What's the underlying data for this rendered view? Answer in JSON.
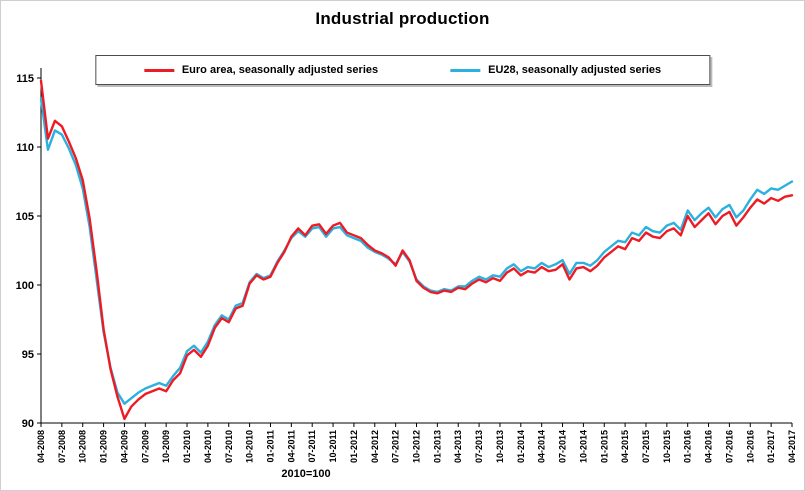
{
  "chart_data": {
    "type": "line",
    "title": "Industrial production",
    "xlabel": "2010=100",
    "ylabel": "",
    "ylim": [
      90,
      115
    ],
    "yticks": [
      90,
      95,
      100,
      105,
      110,
      115
    ],
    "grid": false,
    "legend_position": "top-center",
    "x_tick_every": 3,
    "x_tick_rotation": -90,
    "categories": [
      "04-2008",
      "05-2008",
      "06-2008",
      "07-2008",
      "08-2008",
      "09-2008",
      "10-2008",
      "11-2008",
      "12-2008",
      "01-2009",
      "02-2009",
      "03-2009",
      "04-2009",
      "05-2009",
      "06-2009",
      "07-2009",
      "08-2009",
      "09-2009",
      "10-2009",
      "11-2009",
      "12-2009",
      "01-2010",
      "02-2010",
      "03-2010",
      "04-2010",
      "05-2010",
      "06-2010",
      "07-2010",
      "08-2010",
      "09-2010",
      "10-2010",
      "11-2010",
      "12-2010",
      "01-2011",
      "02-2011",
      "03-2011",
      "04-2011",
      "05-2011",
      "06-2011",
      "07-2011",
      "08-2011",
      "09-2011",
      "10-2011",
      "11-2011",
      "12-2011",
      "01-2012",
      "02-2012",
      "03-2012",
      "04-2012",
      "05-2012",
      "06-2012",
      "07-2012",
      "08-2012",
      "09-2012",
      "10-2012",
      "11-2012",
      "12-2012",
      "01-2013",
      "02-2013",
      "03-2013",
      "04-2013",
      "05-2013",
      "06-2013",
      "07-2013",
      "08-2013",
      "09-2013",
      "10-2013",
      "11-2013",
      "12-2013",
      "01-2014",
      "02-2014",
      "03-2014",
      "04-2014",
      "05-2014",
      "06-2014",
      "07-2014",
      "08-2014",
      "09-2014",
      "10-2014",
      "11-2014",
      "12-2014",
      "01-2015",
      "02-2015",
      "03-2015",
      "04-2015",
      "05-2015",
      "06-2015",
      "07-2015",
      "08-2015",
      "09-2015",
      "10-2015",
      "11-2015",
      "12-2015",
      "01-2016",
      "02-2016",
      "03-2016",
      "04-2016",
      "05-2016",
      "06-2016",
      "07-2016",
      "08-2016",
      "09-2016",
      "10-2016",
      "11-2016",
      "12-2016",
      "01-2017",
      "02-2017",
      "03-2017",
      "04-2017"
    ],
    "series": [
      {
        "name": "Euro area, seasonally adjusted series",
        "color": "#ed1c24",
        "values": [
          114.8,
          110.6,
          111.9,
          111.5,
          110.4,
          109.2,
          107.6,
          104.8,
          101.0,
          96.8,
          93.9,
          91.9,
          90.3,
          91.2,
          91.7,
          92.1,
          92.3,
          92.5,
          92.3,
          93.1,
          93.6,
          94.9,
          95.3,
          94.8,
          95.6,
          96.9,
          97.6,
          97.3,
          98.3,
          98.5,
          100.1,
          100.7,
          100.4,
          100.6,
          101.6,
          102.4,
          103.5,
          104.1,
          103.6,
          104.3,
          104.4,
          103.7,
          104.3,
          104.5,
          103.8,
          103.6,
          103.4,
          102.9,
          102.5,
          102.3,
          102.0,
          101.4,
          102.5,
          101.8,
          100.3,
          99.8,
          99.5,
          99.4,
          99.6,
          99.5,
          99.8,
          99.7,
          100.1,
          100.4,
          100.2,
          100.5,
          100.3,
          100.9,
          101.2,
          100.7,
          101.0,
          100.9,
          101.3,
          101.0,
          101.1,
          101.5,
          100.4,
          101.2,
          101.3,
          101.0,
          101.4,
          102.0,
          102.4,
          102.8,
          102.6,
          103.4,
          103.2,
          103.8,
          103.5,
          103.4,
          103.9,
          104.1,
          103.6,
          105.0,
          104.2,
          104.7,
          105.2,
          104.4,
          105.0,
          105.3,
          104.3,
          104.9,
          105.6,
          106.2,
          105.9,
          106.3,
          106.1,
          106.4,
          106.5
        ]
      },
      {
        "name": "EU28, seasonally adjusted series",
        "color": "#2bb0e0",
        "values": [
          113.5,
          109.8,
          111.2,
          110.9,
          109.9,
          108.7,
          107.0,
          104.2,
          100.4,
          96.6,
          94.0,
          92.2,
          91.4,
          91.8,
          92.2,
          92.5,
          92.7,
          92.9,
          92.7,
          93.4,
          94.0,
          95.2,
          95.6,
          95.1,
          95.9,
          97.1,
          97.8,
          97.5,
          98.5,
          98.7,
          100.2,
          100.8,
          100.5,
          100.7,
          101.7,
          102.5,
          103.4,
          103.9,
          103.5,
          104.1,
          104.2,
          103.5,
          104.1,
          104.2,
          103.6,
          103.4,
          103.2,
          102.7,
          102.4,
          102.2,
          101.9,
          101.5,
          102.4,
          101.7,
          100.4,
          99.9,
          99.6,
          99.5,
          99.7,
          99.6,
          99.9,
          99.9,
          100.3,
          100.6,
          100.4,
          100.7,
          100.6,
          101.2,
          101.5,
          101.0,
          101.3,
          101.2,
          101.6,
          101.3,
          101.5,
          101.8,
          100.8,
          101.6,
          101.6,
          101.4,
          101.8,
          102.4,
          102.8,
          103.2,
          103.1,
          103.8,
          103.6,
          104.2,
          103.9,
          103.8,
          104.3,
          104.5,
          104.0,
          105.4,
          104.7,
          105.2,
          105.6,
          104.9,
          105.5,
          105.8,
          104.9,
          105.4,
          106.2,
          106.9,
          106.6,
          107.0,
          106.9,
          107.2,
          107.5
        ]
      }
    ]
  }
}
